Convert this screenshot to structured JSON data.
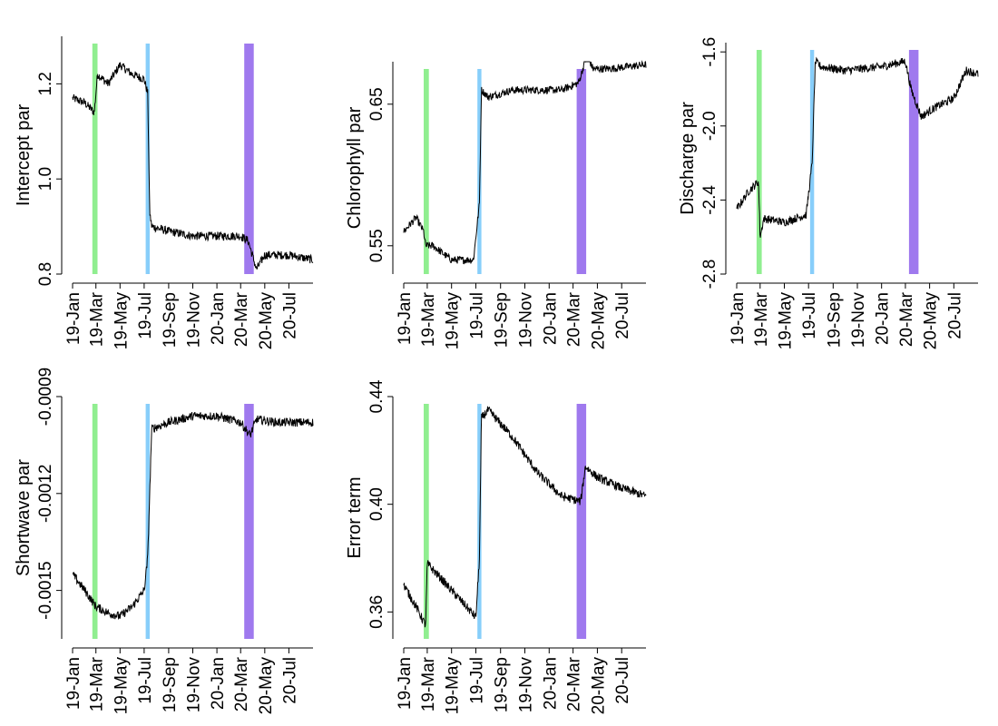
{
  "date_ticks": [
    "19-Jan",
    "19-Mar",
    "19-May",
    "19-Jul",
    "19-Sep",
    "19-Nov",
    "20-Jan",
    "20-Mar",
    "20-May",
    "20-Jul"
  ],
  "date_range": [
    "2019-01-01",
    "2020-08-31"
  ],
  "highlight_bands": [
    {
      "start": "2019-02-20",
      "end": "2019-03-05",
      "color": "#90EE90"
    },
    {
      "start": "2019-07-05",
      "end": "2019-07-15",
      "color": "#87CEFA"
    },
    {
      "start": "2020-03-10",
      "end": "2020-04-03",
      "color": "#9F79EE"
    }
  ],
  "chart_data": [
    {
      "type": "line",
      "ylabel": "Intercept par",
      "ylim": [
        0.8,
        1.3
      ],
      "yticks": [
        "0.8",
        "1.0",
        "1.2"
      ],
      "ytick_values": [
        0.8,
        1.0,
        1.2
      ],
      "series": [
        {
          "x": [
            "2019-01-01",
            "2019-02-01",
            "2019-02-25",
            "2019-03-05",
            "2019-04-01",
            "2019-05-01",
            "2019-06-01",
            "2019-07-01",
            "2019-07-10",
            "2019-07-15",
            "2019-07-20",
            "2019-09-01",
            "2019-11-01",
            "2020-01-01",
            "2020-03-01",
            "2020-03-20",
            "2020-04-10",
            "2020-05-01",
            "2020-07-01",
            "2020-08-31"
          ],
          "y": [
            1.17,
            1.16,
            1.14,
            1.22,
            1.2,
            1.24,
            1.22,
            1.21,
            1.18,
            0.93,
            0.9,
            0.89,
            0.88,
            0.88,
            0.88,
            0.87,
            0.81,
            0.84,
            0.84,
            0.83
          ]
        }
      ]
    },
    {
      "type": "line",
      "ylabel": "Chlorophyll par",
      "ylim": [
        0.53,
        0.68
      ],
      "yticks": [
        "0.55",
        "0.65"
      ],
      "ytick_values": [
        0.55,
        0.65
      ],
      "series": [
        {
          "x": [
            "2019-01-01",
            "2019-02-01",
            "2019-02-20",
            "2019-02-25",
            "2019-03-15",
            "2019-05-01",
            "2019-06-25",
            "2019-07-10",
            "2019-07-15",
            "2019-08-01",
            "2019-10-01",
            "2019-12-01",
            "2020-02-01",
            "2020-03-15",
            "2020-04-05",
            "2020-04-20",
            "2020-06-01",
            "2020-08-31"
          ],
          "y": [
            0.56,
            0.57,
            0.56,
            0.55,
            0.55,
            0.54,
            0.54,
            0.58,
            0.66,
            0.655,
            0.66,
            0.66,
            0.66,
            0.665,
            0.685,
            0.675,
            0.675,
            0.678
          ]
        }
      ]
    },
    {
      "type": "line",
      "ylabel": "Discharge par",
      "ylim": [
        -2.8,
        -1.55
      ],
      "yticks": [
        "-2.8",
        "-2.4",
        "-2.0",
        "-1.6"
      ],
      "ytick_values": [
        -2.8,
        -2.4,
        -2.0,
        -1.6
      ],
      "series": [
        {
          "x": [
            "2019-01-01",
            "2019-02-01",
            "2019-02-25",
            "2019-03-01",
            "2019-03-10",
            "2019-05-01",
            "2019-06-25",
            "2019-07-10",
            "2019-07-18",
            "2019-08-01",
            "2019-10-01",
            "2020-01-01",
            "2020-03-01",
            "2020-03-15",
            "2020-04-10",
            "2020-05-15",
            "2020-07-01",
            "2020-08-01",
            "2020-08-31"
          ],
          "y": [
            -2.45,
            -2.35,
            -2.3,
            -2.6,
            -2.5,
            -2.52,
            -2.48,
            -2.2,
            -1.65,
            -1.68,
            -1.7,
            -1.68,
            -1.65,
            -1.8,
            -1.95,
            -1.9,
            -1.85,
            -1.7,
            -1.72
          ]
        }
      ]
    },
    {
      "type": "line",
      "ylabel": "Shortwave par",
      "ylim": [
        -0.00165,
        -0.0009
      ],
      "yticks": [
        "-0.0015",
        "-0.0012",
        "-0.0009"
      ],
      "ytick_values": [
        -0.0015,
        -0.0012,
        -0.0009
      ],
      "series": [
        {
          "x": [
            "2019-01-01",
            "2019-02-01",
            "2019-03-01",
            "2019-04-01",
            "2019-05-01",
            "2019-06-01",
            "2019-07-01",
            "2019-07-10",
            "2019-07-20",
            "2019-09-01",
            "2019-11-01",
            "2020-01-01",
            "2020-03-01",
            "2020-03-25",
            "2020-04-10",
            "2020-06-01",
            "2020-08-31"
          ],
          "y": [
            -0.00145,
            -0.0015,
            -0.00155,
            -0.00157,
            -0.00158,
            -0.00155,
            -0.0015,
            -0.0014,
            -0.001,
            -0.00098,
            -0.00096,
            -0.00096,
            -0.00098,
            -0.00102,
            -0.00097,
            -0.00098,
            -0.00098
          ]
        }
      ]
    },
    {
      "type": "line",
      "ylabel": "Error term",
      "ylim": [
        0.35,
        0.44
      ],
      "yticks": [
        "0.36",
        "0.40",
        "0.44"
      ],
      "ytick_values": [
        0.36,
        0.4,
        0.44
      ],
      "series": [
        {
          "x": [
            "2019-01-01",
            "2019-02-01",
            "2019-02-25",
            "2019-03-01",
            "2019-04-01",
            "2019-05-01",
            "2019-06-01",
            "2019-07-01",
            "2019-07-10",
            "2019-07-15",
            "2019-08-01",
            "2019-10-01",
            "2019-12-01",
            "2020-02-01",
            "2020-03-20",
            "2020-04-01",
            "2020-05-01",
            "2020-07-01",
            "2020-08-31"
          ],
          "y": [
            0.37,
            0.362,
            0.355,
            0.378,
            0.373,
            0.368,
            0.363,
            0.358,
            0.38,
            0.432,
            0.435,
            0.425,
            0.412,
            0.403,
            0.401,
            0.414,
            0.41,
            0.406,
            0.403
          ]
        }
      ]
    }
  ]
}
